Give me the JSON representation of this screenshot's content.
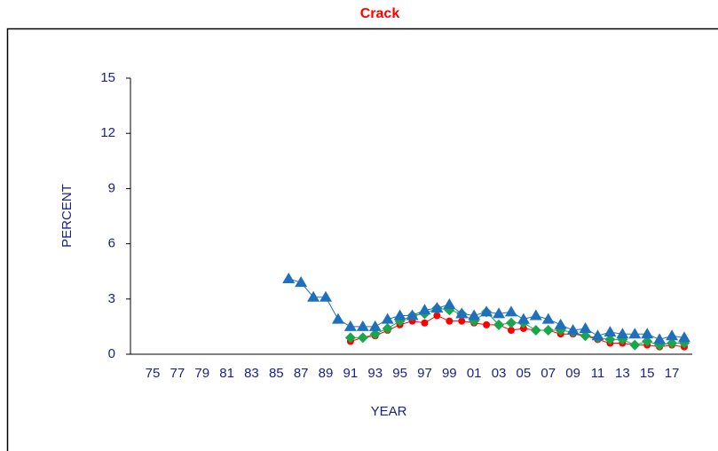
{
  "chart_data": {
    "type": "line",
    "title": "Crack",
    "title_color": "#ff0000",
    "x_label": "YEAR",
    "y_label": "PERCENT",
    "categories": [
      "75",
      null,
      "77",
      null,
      "79",
      null,
      "81",
      null,
      "83",
      null,
      "85",
      null,
      "87",
      null,
      "89",
      null,
      "91",
      null,
      "93",
      null,
      "95",
      null,
      "97",
      null,
      "99",
      null,
      "01",
      null,
      "03",
      null,
      "05",
      null,
      "07",
      null,
      "09",
      null,
      "11",
      null,
      "13",
      null,
      "15",
      null,
      "17",
      null
    ],
    "ylim": [
      0,
      15
    ],
    "yticks": [
      0,
      3,
      6,
      9,
      12,
      15
    ],
    "grid": false,
    "series": [
      {
        "color": "#ff0000",
        "marker": "circle",
        "values": [
          null,
          null,
          null,
          null,
          null,
          null,
          null,
          null,
          null,
          null,
          null,
          null,
          null,
          null,
          null,
          null,
          0.7,
          0.9,
          1.0,
          1.3,
          1.6,
          1.8,
          1.7,
          2.1,
          1.8,
          1.8,
          1.7,
          1.6,
          1.6,
          1.3,
          1.4,
          1.3,
          1.3,
          1.1,
          1.1,
          1.0,
          0.8,
          0.6,
          0.6,
          0.5,
          0.5,
          0.4,
          0.5,
          0.4
        ]
      },
      {
        "color": "#1aa64a",
        "marker": "diamond",
        "values": [
          null,
          null,
          null,
          null,
          null,
          null,
          null,
          null,
          null,
          null,
          null,
          null,
          null,
          null,
          null,
          null,
          0.9,
          0.9,
          1.1,
          1.4,
          1.8,
          2.1,
          2.2,
          2.5,
          2.4,
          2.2,
          1.8,
          2.3,
          1.6,
          1.7,
          1.7,
          1.3,
          1.3,
          1.3,
          1.2,
          1.0,
          0.9,
          0.8,
          0.8,
          0.5,
          0.7,
          0.5,
          0.6,
          0.6
        ]
      },
      {
        "color": "#1f6fbf",
        "marker": "triangle",
        "values": [
          null,
          null,
          null,
          null,
          null,
          null,
          null,
          null,
          null,
          null,
          null,
          4.1,
          3.9,
          3.1,
          3.1,
          1.9,
          1.5,
          1.5,
          1.5,
          1.9,
          2.1,
          2.1,
          2.4,
          2.5,
          2.7,
          2.2,
          2.1,
          2.3,
          2.2,
          2.3,
          1.9,
          2.1,
          1.9,
          1.6,
          1.3,
          1.4,
          1.0,
          1.2,
          1.1,
          1.1,
          1.1,
          0.8,
          1.0,
          0.9
        ]
      }
    ]
  }
}
